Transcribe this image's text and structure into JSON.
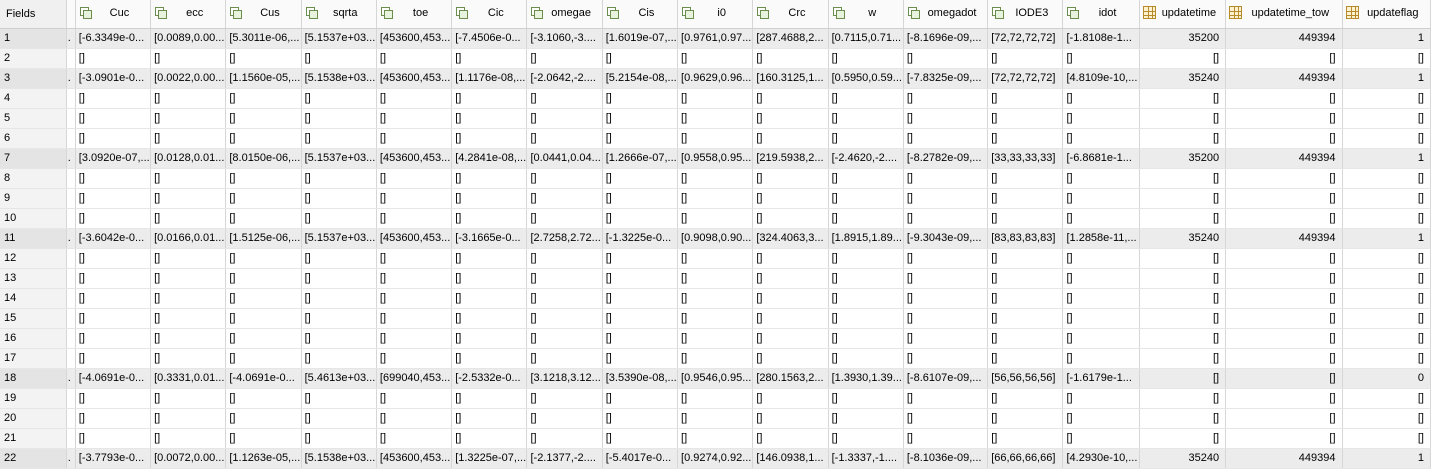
{
  "rowhead_label": "Fields",
  "columns": [
    {
      "label": "Cuc",
      "icon": "struct-icon"
    },
    {
      "label": "ecc",
      "icon": "struct-icon"
    },
    {
      "label": "Cus",
      "icon": "struct-icon"
    },
    {
      "label": "sqrta",
      "icon": "struct-icon"
    },
    {
      "label": "toe",
      "icon": "struct-icon"
    },
    {
      "label": "Cic",
      "icon": "struct-icon"
    },
    {
      "label": "omegae",
      "icon": "struct-icon"
    },
    {
      "label": "Cis",
      "icon": "struct-icon"
    },
    {
      "label": "i0",
      "icon": "struct-icon"
    },
    {
      "label": "Crc",
      "icon": "struct-icon"
    },
    {
      "label": "w",
      "icon": "struct-icon"
    },
    {
      "label": "omegadot",
      "icon": "struct-icon"
    },
    {
      "label": "IODE3",
      "icon": "struct-icon"
    },
    {
      "label": "idot",
      "icon": "struct-icon"
    },
    {
      "label": "updatetime",
      "icon": "grid-icon"
    },
    {
      "label": "updatetime_tow",
      "icon": "grid-icon"
    },
    {
      "label": "updateflag",
      "icon": "grid-icon"
    }
  ],
  "rows": [
    {
      "n": "1",
      "gap": ".",
      "cells": [
        "[-6.3349e-0...",
        "[0.0089,0.00...",
        "[5.3011e-06,...",
        "[5.1537e+03...",
        "[453600,453...",
        "[-7.4506e-0...",
        "[-3.1060,-3....",
        "[1.6019e-07,...",
        "[0.9761,0.97...",
        "[287.4688,2...",
        "[0.7115,0.71...",
        "[-8.1696e-09,...",
        "[72,72,72,72]",
        "[-1.8108e-1...",
        "35200",
        "449394",
        "1"
      ]
    },
    {
      "n": "2",
      "gap": "",
      "cells": [
        "[]",
        "[]",
        "[]",
        "[]",
        "[]",
        "[]",
        "[]",
        "[]",
        "[]",
        "[]",
        "[]",
        "[]",
        "[]",
        "[]",
        "[]",
        "[]",
        "[]"
      ]
    },
    {
      "n": "3",
      "gap": ".",
      "cells": [
        "[-3.0901e-0...",
        "[0.0022,0.00...",
        "[1.1560e-05,...",
        "[5.1538e+03...",
        "[453600,453...",
        "[1.1176e-08,...",
        "[-2.0642,-2....",
        "[5.2154e-08,...",
        "[0.9629,0.96...",
        "[160.3125,1...",
        "[0.5950,0.59...",
        "[-7.8325e-09,...",
        "[72,72,72,72]",
        "[4.8109e-10,...",
        "35240",
        "449394",
        "1"
      ]
    },
    {
      "n": "4",
      "gap": "",
      "cells": [
        "[]",
        "[]",
        "[]",
        "[]",
        "[]",
        "[]",
        "[]",
        "[]",
        "[]",
        "[]",
        "[]",
        "[]",
        "[]",
        "[]",
        "[]",
        "[]",
        "[]"
      ]
    },
    {
      "n": "5",
      "gap": "",
      "cells": [
        "[]",
        "[]",
        "[]",
        "[]",
        "[]",
        "[]",
        "[]",
        "[]",
        "[]",
        "[]",
        "[]",
        "[]",
        "[]",
        "[]",
        "[]",
        "[]",
        "[]"
      ]
    },
    {
      "n": "6",
      "gap": "",
      "cells": [
        "[]",
        "[]",
        "[]",
        "[]",
        "[]",
        "[]",
        "[]",
        "[]",
        "[]",
        "[]",
        "[]",
        "[]",
        "[]",
        "[]",
        "[]",
        "[]",
        "[]"
      ]
    },
    {
      "n": "7",
      "gap": ".",
      "cells": [
        "[3.0920e-07,...",
        "[0.0128,0.01...",
        "[8.0150e-06,...",
        "[5.1537e+03...",
        "[453600,453...",
        "[4.2841e-08,...",
        "[0.0441,0.04...",
        "[1.2666e-07,...",
        "[0.9558,0.95...",
        "[219.5938,2...",
        "[-2.4620,-2....",
        "[-8.2782e-09,...",
        "[33,33,33,33]",
        "[-6.8681e-1...",
        "35200",
        "449394",
        "1"
      ]
    },
    {
      "n": "8",
      "gap": "",
      "cells": [
        "[]",
        "[]",
        "[]",
        "[]",
        "[]",
        "[]",
        "[]",
        "[]",
        "[]",
        "[]",
        "[]",
        "[]",
        "[]",
        "[]",
        "[]",
        "[]",
        "[]"
      ]
    },
    {
      "n": "9",
      "gap": "",
      "cells": [
        "[]",
        "[]",
        "[]",
        "[]",
        "[]",
        "[]",
        "[]",
        "[]",
        "[]",
        "[]",
        "[]",
        "[]",
        "[]",
        "[]",
        "[]",
        "[]",
        "[]"
      ]
    },
    {
      "n": "10",
      "gap": "",
      "cells": [
        "[]",
        "[]",
        "[]",
        "[]",
        "[]",
        "[]",
        "[]",
        "[]",
        "[]",
        "[]",
        "[]",
        "[]",
        "[]",
        "[]",
        "[]",
        "[]",
        "[]"
      ]
    },
    {
      "n": "11",
      "gap": ".",
      "cells": [
        "[-3.6042e-0...",
        "[0.0166,0.01...",
        "[1.5125e-06,...",
        "[5.1537e+03...",
        "[453600,453...",
        "[-3.1665e-0...",
        "[2.7258,2.72...",
        "[-1.3225e-0...",
        "[0.9098,0.90...",
        "[324.4063,3...",
        "[1.8915,1.89...",
        "[-9.3043e-09,...",
        "[83,83,83,83]",
        "[1.2858e-11,...",
        "35240",
        "449394",
        "1"
      ]
    },
    {
      "n": "12",
      "gap": "",
      "cells": [
        "[]",
        "[]",
        "[]",
        "[]",
        "[]",
        "[]",
        "[]",
        "[]",
        "[]",
        "[]",
        "[]",
        "[]",
        "[]",
        "[]",
        "[]",
        "[]",
        "[]"
      ]
    },
    {
      "n": "13",
      "gap": "",
      "cells": [
        "[]",
        "[]",
        "[]",
        "[]",
        "[]",
        "[]",
        "[]",
        "[]",
        "[]",
        "[]",
        "[]",
        "[]",
        "[]",
        "[]",
        "[]",
        "[]",
        "[]"
      ]
    },
    {
      "n": "14",
      "gap": "",
      "cells": [
        "[]",
        "[]",
        "[]",
        "[]",
        "[]",
        "[]",
        "[]",
        "[]",
        "[]",
        "[]",
        "[]",
        "[]",
        "[]",
        "[]",
        "[]",
        "[]",
        "[]"
      ]
    },
    {
      "n": "15",
      "gap": "",
      "cells": [
        "[]",
        "[]",
        "[]",
        "[]",
        "[]",
        "[]",
        "[]",
        "[]",
        "[]",
        "[]",
        "[]",
        "[]",
        "[]",
        "[]",
        "[]",
        "[]",
        "[]"
      ]
    },
    {
      "n": "16",
      "gap": "",
      "cells": [
        "[]",
        "[]",
        "[]",
        "[]",
        "[]",
        "[]",
        "[]",
        "[]",
        "[]",
        "[]",
        "[]",
        "[]",
        "[]",
        "[]",
        "[]",
        "[]",
        "[]"
      ]
    },
    {
      "n": "17",
      "gap": "",
      "cells": [
        "[]",
        "[]",
        "[]",
        "[]",
        "[]",
        "[]",
        "[]",
        "[]",
        "[]",
        "[]",
        "[]",
        "[]",
        "[]",
        "[]",
        "[]",
        "[]",
        "[]"
      ]
    },
    {
      "n": "18",
      "gap": ".",
      "cells": [
        "[-4.0691e-0...",
        "[0.3331,0.01...",
        "[-4.0691e-0...",
        "[5.4613e+03...",
        "[699040,453...",
        "[-2.5332e-0...",
        "[3.1218,3.12...",
        "[3.5390e-08,...",
        "[0.9546,0.95...",
        "[280.1563,2...",
        "[1.3930,1.39...",
        "[-8.6107e-09,...",
        "[56,56,56,56]",
        "[-1.6179e-1...",
        "[]",
        "[]",
        "0"
      ]
    },
    {
      "n": "19",
      "gap": "",
      "cells": [
        "[]",
        "[]",
        "[]",
        "[]",
        "[]",
        "[]",
        "[]",
        "[]",
        "[]",
        "[]",
        "[]",
        "[]",
        "[]",
        "[]",
        "[]",
        "[]",
        "[]"
      ]
    },
    {
      "n": "20",
      "gap": "",
      "cells": [
        "[]",
        "[]",
        "[]",
        "[]",
        "[]",
        "[]",
        "[]",
        "[]",
        "[]",
        "[]",
        "[]",
        "[]",
        "[]",
        "[]",
        "[]",
        "[]",
        "[]"
      ]
    },
    {
      "n": "21",
      "gap": "",
      "cells": [
        "[]",
        "[]",
        "[]",
        "[]",
        "[]",
        "[]",
        "[]",
        "[]",
        "[]",
        "[]",
        "[]",
        "[]",
        "[]",
        "[]",
        "[]",
        "[]",
        "[]"
      ]
    },
    {
      "n": "22",
      "gap": ".",
      "cells": [
        "[-3.7793e-0...",
        "[0.0072,0.00...",
        "[1.1263e-05,...",
        "[5.1538e+03...",
        "[453600,453...",
        "[1.3225e-07,...",
        "[-2.1377,-2....",
        "[-5.4017e-0...",
        "[0.9274,0.92...",
        "[146.0938,1...",
        "[-1.3337,-1....",
        "[-8.1036e-09,...",
        "[66,66,66,66]",
        "[4.2930e-10,...",
        "35240",
        "449394",
        "1"
      ]
    }
  ]
}
